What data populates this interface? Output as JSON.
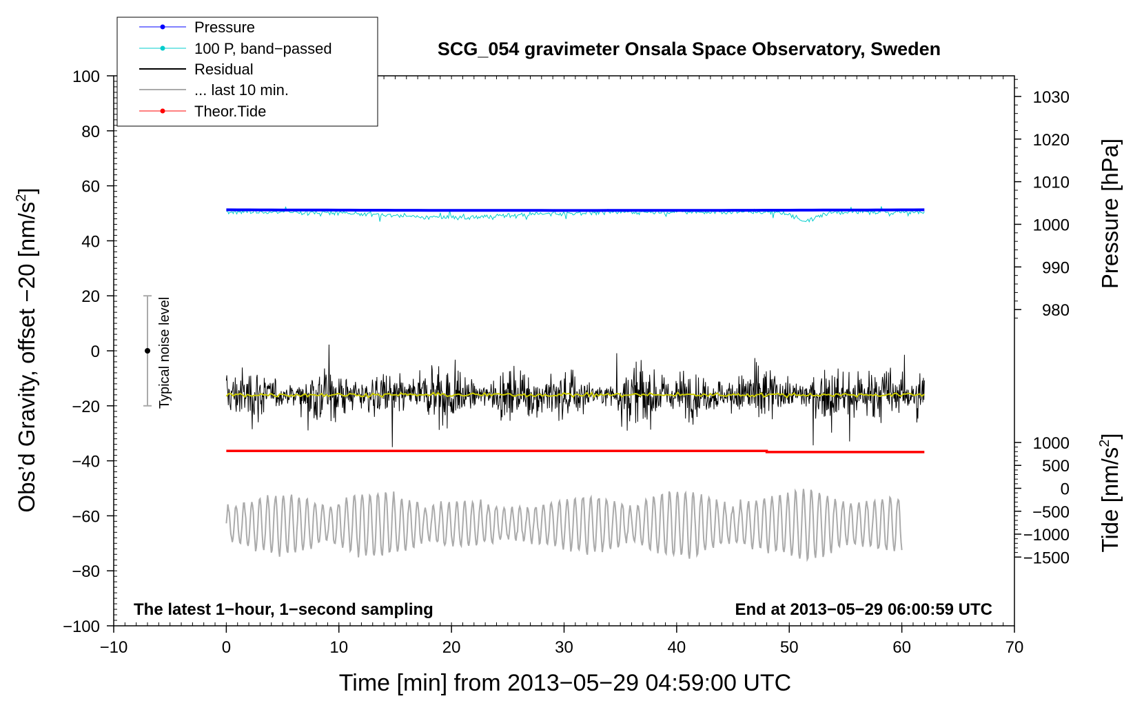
{
  "chart_data": {
    "type": "line",
    "title": "SCG_054 gravimeter Onsala Space Observatory, Sweden",
    "xlabel": "Time [min] from 2013−05−29 04:59:00 UTC",
    "ylabel": "Obs’d Gravity, offset −20 [nm/s²]",
    "ylabel_text": "Obs’d Gravity, offset −20 [nm/s",
    "ylabel_sup": "2",
    "ylabel_end": "]",
    "xlim": [
      -10,
      70
    ],
    "ylim": [
      -100,
      100
    ],
    "x_ticks": [
      -10,
      0,
      10,
      20,
      30,
      40,
      50,
      60,
      70
    ],
    "x_tick_labels": [
      "−10",
      "0",
      "10",
      "20",
      "30",
      "40",
      "50",
      "60",
      "70"
    ],
    "y_ticks": [
      -100,
      -80,
      -60,
      -40,
      -20,
      0,
      20,
      40,
      60,
      80,
      100
    ],
    "y_tick_labels": [
      "−100",
      "−80",
      "−60",
      "−40",
      "−20",
      "0",
      "20",
      "40",
      "60",
      "80",
      "100"
    ],
    "grid": false,
    "right_axis_pressure": {
      "label": "Pressure [hPa]",
      "ticks": [
        980,
        990,
        1000,
        1010,
        1020,
        1030
      ],
      "tick_labels": [
        "980",
        "990",
        "1000",
        "1010",
        "1020",
        "1030"
      ],
      "mapping_gravity_at_1000": 46,
      "gravity_per_hPa": 1.55
    },
    "right_axis_tide": {
      "label": "Tide [nm/s²]",
      "label_text": "Tide [nm/s",
      "label_sup": "2",
      "label_end": "]",
      "ticks": [
        -1500,
        -1000,
        -500,
        0,
        500,
        1000
      ],
      "tick_labels": [
        "−1500",
        "−1000",
        "−500",
        "0",
        "500",
        "1000"
      ],
      "mapping_gravity_at_0": -50,
      "gravity_per_unit": 0.01667
    },
    "legend": {
      "position": "top-left",
      "entries": [
        {
          "label": "Pressure",
          "color": "#0000ff",
          "marker": true
        },
        {
          "label": "100 P, band−passed",
          "color": "#00cccc",
          "marker": true
        },
        {
          "label": "Residual",
          "color": "#000000",
          "marker": false
        },
        {
          "label": "... last 10 min.",
          "color": "#aaaaaa",
          "marker": false
        },
        {
          "label": "Theor.Tide",
          "color": "#ff0000",
          "marker": true
        }
      ]
    },
    "annotations": {
      "left": "The latest 1−hour, 1−second sampling",
      "right": "End at 2013−05−29 06:00:59 UTC",
      "noise": "Typical noise level"
    },
    "noise_bar": {
      "x": -7,
      "center": 0,
      "low": -20,
      "high": 20
    },
    "series": [
      {
        "name": "Pressure",
        "color": "#0000ff",
        "x_range": [
          0,
          62
        ],
        "level": 1003.4
      },
      {
        "name": "100 P, band−passed",
        "color": "#00cccc",
        "x_range": [
          0,
          62
        ],
        "level": 50.5
      },
      {
        "name": "Residual",
        "color": "#000000",
        "x_range": [
          0,
          62
        ],
        "level": -16
      },
      {
        "name": "Theor.Tide",
        "color": "#ff0000",
        "x_range": [
          0,
          62
        ],
        "start": -36.4,
        "end": -36.8
      },
      {
        "name": "... last 10 min.",
        "color": "#aaaaaa",
        "x_range": [
          0,
          60
        ],
        "level": -60
      }
    ]
  }
}
